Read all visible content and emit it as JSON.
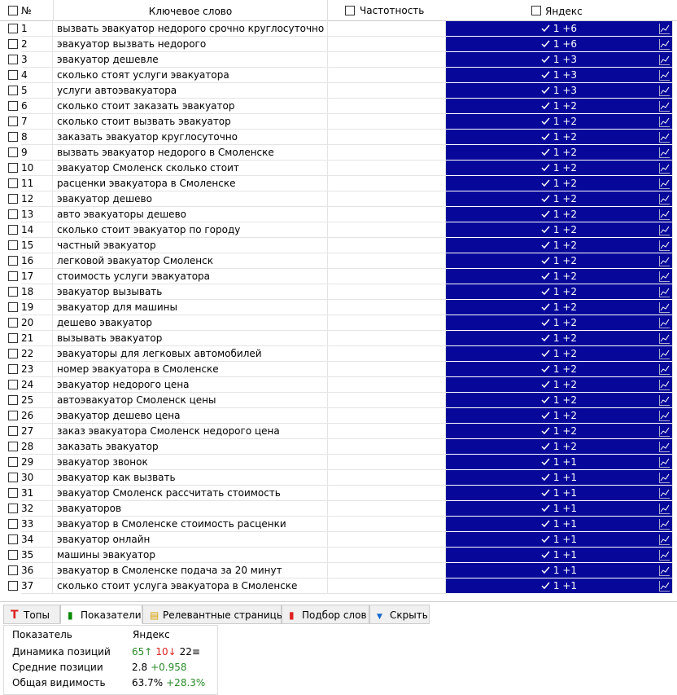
{
  "header": {
    "number": "№",
    "keyword": "Ключевое слово",
    "frequency": "Частотность",
    "yandex": "Яндекс"
  },
  "table": {
    "rows": [
      [
        "1",
        "вызвать эвакуатор недорого срочно круглосуточно",
        "1",
        "+6"
      ],
      [
        "2",
        "эвакуатор вызвать недорого",
        "1",
        "+6"
      ],
      [
        "3",
        "эвакуатор дешевле",
        "1",
        "+3"
      ],
      [
        "4",
        "сколько стоят услуги эвакуатора",
        "1",
        "+3"
      ],
      [
        "5",
        "услуги автоэвакуатора",
        "1",
        "+3"
      ],
      [
        "6",
        "сколько стоит заказать эвакуатор",
        "1",
        "+2"
      ],
      [
        "7",
        "сколько стоит вызвать эвакуатор",
        "1",
        "+2"
      ],
      [
        "8",
        "заказать эвакуатор круглосуточно",
        "1",
        "+2"
      ],
      [
        "9",
        "вызвать эвакуатор недорого в Смоленске",
        "1",
        "+2"
      ],
      [
        "10",
        "эвакуатор Смоленск сколько стоит",
        "1",
        "+2"
      ],
      [
        "11",
        "расценки эвакуатора в Смоленске",
        "1",
        "+2"
      ],
      [
        "12",
        "эвакуатор дешево",
        "1",
        "+2"
      ],
      [
        "13",
        "авто эвакуаторы дешево",
        "1",
        "+2"
      ],
      [
        "14",
        "сколько стоит эвакуатор по городу",
        "1",
        "+2"
      ],
      [
        "15",
        "частный эвакуатор",
        "1",
        "+2"
      ],
      [
        "16",
        "легковой эвакуатор Смоленск",
        "1",
        "+2"
      ],
      [
        "17",
        "стоимость услуги эвакуатора",
        "1",
        "+2"
      ],
      [
        "18",
        "эвакуатор вызывать",
        "1",
        "+2"
      ],
      [
        "19",
        "эвакуатор для машины",
        "1",
        "+2"
      ],
      [
        "20",
        "дешево эвакуатор",
        "1",
        "+2"
      ],
      [
        "21",
        "вызывать эвакуатор",
        "1",
        "+2"
      ],
      [
        "22",
        "эвакуаторы для легковых автомобилей",
        "1",
        "+2"
      ],
      [
        "23",
        "номер эвакуатора в Смоленске",
        "1",
        "+2"
      ],
      [
        "24",
        "эвакуатор недорого цена",
        "1",
        "+2"
      ],
      [
        "25",
        "автоэвакуатор Смоленск цены",
        "1",
        "+2"
      ],
      [
        "26",
        "эвакуатор дешево цена",
        "1",
        "+2"
      ],
      [
        "27",
        "заказ эвакуатора Смоленск недорого цена",
        "1",
        "+2"
      ],
      [
        "28",
        "заказать эвакуатор",
        "1",
        "+2"
      ],
      [
        "29",
        "эвакуатор звонок",
        "1",
        "+1"
      ],
      [
        "30",
        "эвакуатор как вызвать",
        "1",
        "+1"
      ],
      [
        "31",
        "эвакуатор Смоленск рассчитать стоимость",
        "1",
        "+1"
      ],
      [
        "32",
        "эвакуаторов",
        "1",
        "+1"
      ],
      [
        "33",
        "эвакуатор в Смоленске стоимость расценки",
        "1",
        "+1"
      ],
      [
        "34",
        "эвакуатор онлайн",
        "1",
        "+1"
      ],
      [
        "35",
        "машины эвакуатор",
        "1",
        "+1"
      ],
      [
        "36",
        "эвакуатор в Смоленске подача за 20 минут",
        "1",
        "+1"
      ],
      [
        "37",
        "сколько стоит услуга эвакуатора в Смоленске",
        "1",
        "+1"
      ]
    ]
  },
  "tabs": [
    "Топы",
    "Показатели",
    "Релевантные страницы",
    "Подбор слов",
    "Скрыть"
  ],
  "stats": {
    "header": [
      "Показатель",
      "Яндекс"
    ],
    "rows": [
      [
        "Динамика позиций",
        [
          "65↑",
          "10↓",
          "22≡"
        ]
      ],
      [
        "Средние позиции",
        [
          "2.8",
          "+0.958"
        ]
      ],
      [
        "Общая видимость",
        [
          "63.7%",
          "+28.3%"
        ]
      ]
    ]
  }
}
